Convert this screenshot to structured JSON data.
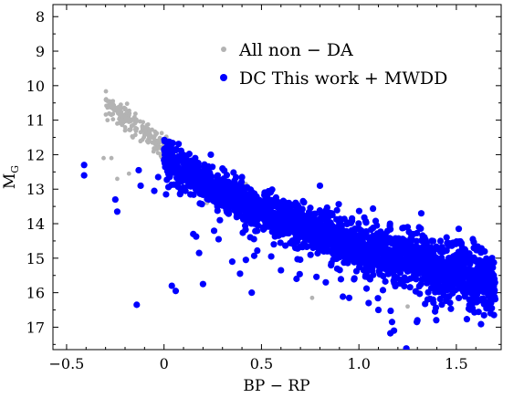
{
  "chart_data": {
    "type": "scatter",
    "xlabel": "BP − RP",
    "ylabel_main": "M",
    "ylabel_sub": "G",
    "xlim": [
      -0.57,
      1.73
    ],
    "ylim": [
      17.65,
      7.65
    ],
    "y_inverted": true,
    "x_ticks": [
      -0.5,
      0,
      0.5,
      1.0,
      1.5
    ],
    "x_tick_labels": [
      "−0.5",
      "0",
      "0.5",
      "1.0",
      "1.5"
    ],
    "y_ticks": [
      8,
      9,
      10,
      11,
      12,
      13,
      14,
      15,
      16,
      17
    ],
    "y_tick_labels": [
      "8",
      "9",
      "10",
      "11",
      "12",
      "13",
      "14",
      "15",
      "16",
      "17"
    ],
    "grid": false,
    "legend_position": "top-right",
    "series": [
      {
        "name": "All non − DA",
        "color": "#b3b3b3",
        "marker": "small-dot",
        "points": [
          [
            -0.28,
            10.45
          ],
          [
            -0.27,
            10.55
          ],
          [
            -0.25,
            10.65
          ],
          [
            -0.24,
            10.75
          ],
          [
            -0.22,
            10.85
          ],
          [
            -0.2,
            10.95
          ],
          [
            -0.18,
            11.05
          ],
          [
            -0.16,
            11.15
          ],
          [
            -0.14,
            11.25
          ],
          [
            -0.12,
            11.35
          ],
          [
            -0.1,
            11.45
          ],
          [
            -0.08,
            11.55
          ],
          [
            -0.06,
            11.65
          ],
          [
            -0.04,
            11.72
          ],
          [
            -0.02,
            11.78
          ],
          [
            -0.26,
            10.6
          ],
          [
            -0.22,
            10.75
          ],
          [
            -0.19,
            10.9
          ],
          [
            -0.15,
            11.1
          ],
          [
            -0.11,
            11.3
          ],
          [
            -0.07,
            11.5
          ],
          [
            -0.03,
            11.7
          ],
          [
            -0.29,
            11.0
          ],
          [
            -0.24,
            11.1
          ],
          [
            -0.2,
            11.3
          ],
          [
            -0.16,
            11.5
          ],
          [
            -0.12,
            11.6
          ],
          [
            -0.31,
            12.1
          ],
          [
            -0.27,
            12.1
          ],
          [
            -0.24,
            12.7
          ],
          [
            -0.18,
            12.55
          ],
          [
            0.05,
            12.0
          ],
          [
            0.1,
            12.2
          ],
          [
            0.2,
            12.7
          ],
          [
            0.3,
            13.2
          ],
          [
            0.35,
            13.0
          ],
          [
            0.42,
            12.85
          ],
          [
            0.22,
            13.4
          ],
          [
            0.56,
            13.5
          ],
          [
            0.6,
            13.35
          ],
          [
            0.9,
            14.0
          ],
          [
            0.95,
            14.6
          ],
          [
            1.1,
            14.5
          ],
          [
            1.25,
            16.4
          ],
          [
            1.3,
            15.9
          ],
          [
            0.76,
            16.15
          ],
          [
            1.2,
            15.2
          ],
          [
            1.4,
            15.3
          ]
        ]
      },
      {
        "name": "DC This work + MWDD",
        "color": "#0000ff",
        "marker": "dot",
        "trend": [
          [
            0.0,
            12.0
          ],
          [
            0.2,
            12.75
          ],
          [
            0.4,
            13.4
          ],
          [
            0.6,
            13.85
          ],
          [
            0.8,
            14.25
          ],
          [
            1.0,
            14.6
          ],
          [
            1.2,
            14.95
          ],
          [
            1.4,
            15.25
          ],
          [
            1.6,
            15.5
          ],
          [
            1.7,
            15.65
          ]
        ],
        "points": [
          [
            -0.41,
            12.3
          ],
          [
            -0.41,
            12.6
          ],
          [
            -0.25,
            13.3
          ],
          [
            -0.24,
            13.65
          ],
          [
            -0.13,
            12.45
          ],
          [
            -0.12,
            12.9
          ],
          [
            -0.14,
            16.35
          ],
          [
            -0.05,
            13.05
          ],
          [
            -0.03,
            12.65
          ],
          [
            0.04,
            15.8
          ],
          [
            0.06,
            15.95
          ],
          [
            0.07,
            12.2
          ],
          [
            0.11,
            13.05
          ],
          [
            0.15,
            14.3
          ],
          [
            0.18,
            14.85
          ],
          [
            0.2,
            15.75
          ],
          [
            0.23,
            13.3
          ],
          [
            0.27,
            12.9
          ],
          [
            0.28,
            14.45
          ],
          [
            0.32,
            13.6
          ],
          [
            0.35,
            15.1
          ],
          [
            0.39,
            15.45
          ],
          [
            0.42,
            15.05
          ],
          [
            0.45,
            16.0
          ],
          [
            0.52,
            13.1
          ],
          [
            0.55,
            14.95
          ],
          [
            0.6,
            15.35
          ],
          [
            0.68,
            15.6
          ],
          [
            0.8,
            12.9
          ],
          [
            0.83,
            15.7
          ],
          [
            0.95,
            16.15
          ],
          [
            1.05,
            16.3
          ],
          [
            1.1,
            16.5
          ],
          [
            1.17,
            16.85
          ],
          [
            1.18,
            17.1
          ],
          [
            1.3,
            16.8
          ],
          [
            1.32,
            13.7
          ],
          [
            1.25,
            14.1
          ],
          [
            1.45,
            14.4
          ],
          [
            1.38,
            16.2
          ],
          [
            1.52,
            15.2
          ],
          [
            1.55,
            15.95
          ],
          [
            1.6,
            16.1
          ],
          [
            1.65,
            15.35
          ],
          [
            1.68,
            15.55
          ],
          [
            1.69,
            15.75
          ],
          [
            0.16,
            12.1
          ],
          [
            0.12,
            12.5
          ],
          [
            0.24,
            12.0
          ],
          [
            0.3,
            12.4
          ]
        ]
      }
    ]
  }
}
